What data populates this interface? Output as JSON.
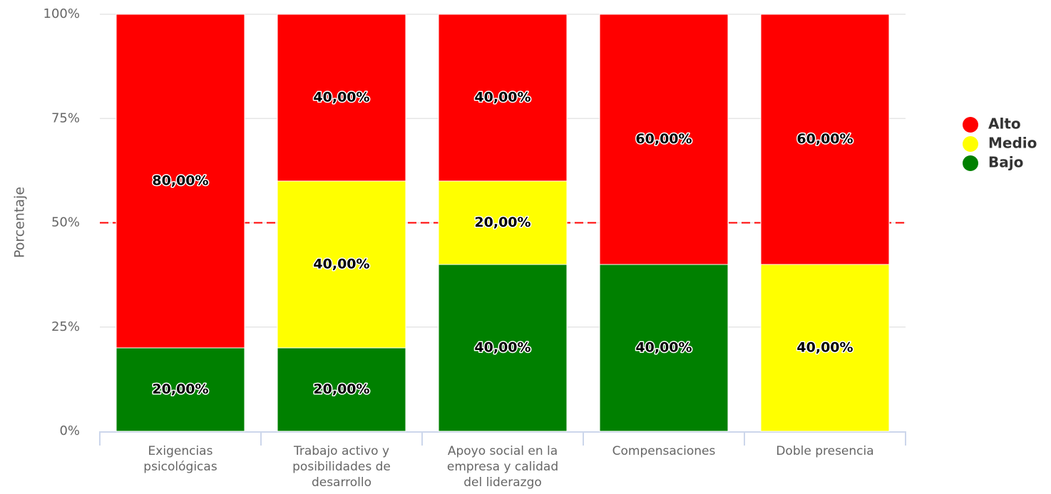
{
  "chart_data": {
    "type": "stacked_bar",
    "y_axis_label": "Porcentaje",
    "categories": [
      "Exigencias psicológicas",
      "Trabajo activo y posibilidades de desarrollo",
      "Apoyo social en la empresa y calidad del liderazgo",
      "Compensaciones",
      "Doble presencia"
    ],
    "series": [
      {
        "name": "Alto",
        "color": "#ff0000",
        "values": [
          80,
          40,
          40,
          60,
          60
        ],
        "value_labels": [
          "80,00%",
          "40,00%",
          "40,00%",
          "60,00%",
          "60,00%"
        ]
      },
      {
        "name": "Medio",
        "color": "#ffff00",
        "values": [
          0,
          40,
          20,
          0,
          40
        ],
        "value_labels": [
          null,
          "40,00%",
          "20,00%",
          null,
          "40,00%"
        ]
      },
      {
        "name": "Bajo",
        "color": "#008000",
        "values": [
          20,
          20,
          40,
          40,
          0
        ],
        "value_labels": [
          "20,00%",
          "20,00%",
          "40,00%",
          "40,00%",
          null
        ]
      }
    ],
    "ylim": [
      0,
      100
    ],
    "yticks": [
      {
        "value": 0,
        "label": "0%"
      },
      {
        "value": 25,
        "label": "25%"
      },
      {
        "value": 50,
        "label": "50%"
      },
      {
        "value": 75,
        "label": "75%"
      },
      {
        "value": 100,
        "label": "100%"
      }
    ],
    "grid": true,
    "reference_line": {
      "value": 50,
      "color": "#ff0000"
    },
    "legend": "right"
  }
}
